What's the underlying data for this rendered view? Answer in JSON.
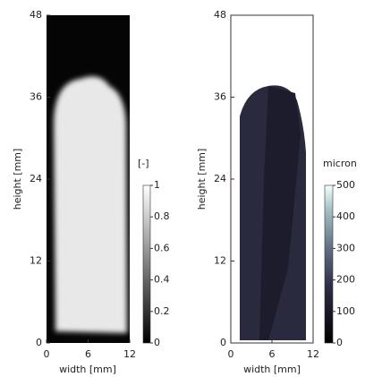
{
  "chart_data": [
    {
      "type": "heatmap",
      "xlabel": "width [mm]",
      "ylabel": "height [mm]",
      "xlim": [
        0,
        12
      ],
      "xticks": [
        0,
        6,
        12
      ],
      "ylim": [
        0,
        48
      ],
      "yticks": [
        0,
        12,
        24,
        36,
        48
      ],
      "colorbar": {
        "label": "[-]",
        "lim": [
          0,
          1
        ],
        "ticks": [
          0,
          0.2,
          0.4,
          0.6,
          0.8,
          1
        ]
      }
    },
    {
      "type": "heatmap",
      "xlabel": "width [mm]",
      "ylabel": "height [mm]",
      "xlim": [
        0,
        12
      ],
      "xticks": [
        0,
        6,
        12
      ],
      "ylim": [
        0,
        48
      ],
      "yticks": [
        0,
        12,
        24,
        36,
        48
      ],
      "colorbar": {
        "label": "micron",
        "lim": [
          0,
          500
        ],
        "ticks": [
          0,
          100,
          200,
          300,
          400,
          500
        ]
      }
    }
  ]
}
